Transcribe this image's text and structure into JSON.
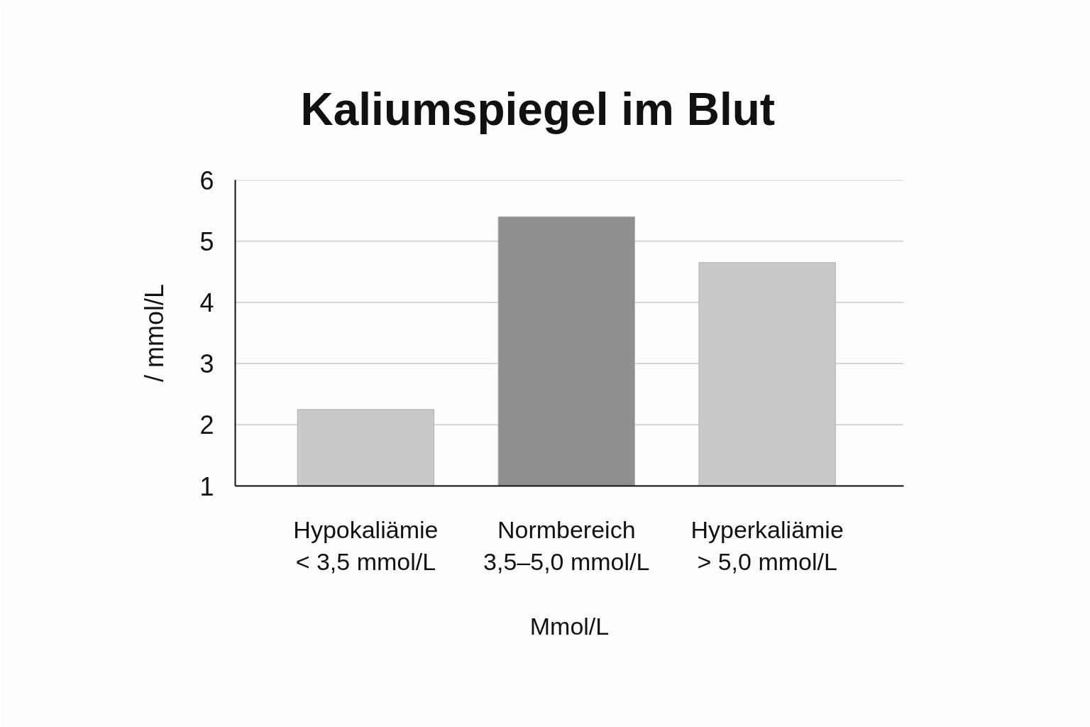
{
  "chart_data": {
    "type": "bar",
    "title": "Kaliumspiegel im Blut",
    "xlabel": "Mmol/L",
    "ylabel": "/ mmol/L",
    "categories": [
      "Hypokaliämie\n< 3,5 mmol/L",
      "Normbereich\n3,5–5,0 mmol/L",
      "Hyperkaliämie\n> 5,0 mmol/L"
    ],
    "values": [
      2.25,
      5.4,
      4.65
    ],
    "colors": [
      "#c9c9c9",
      "#8f8f8f",
      "#c9c9c9"
    ],
    "ylim": [
      1,
      6
    ],
    "yticks": [
      1,
      2,
      3,
      4,
      5,
      6
    ],
    "grid": "y"
  }
}
